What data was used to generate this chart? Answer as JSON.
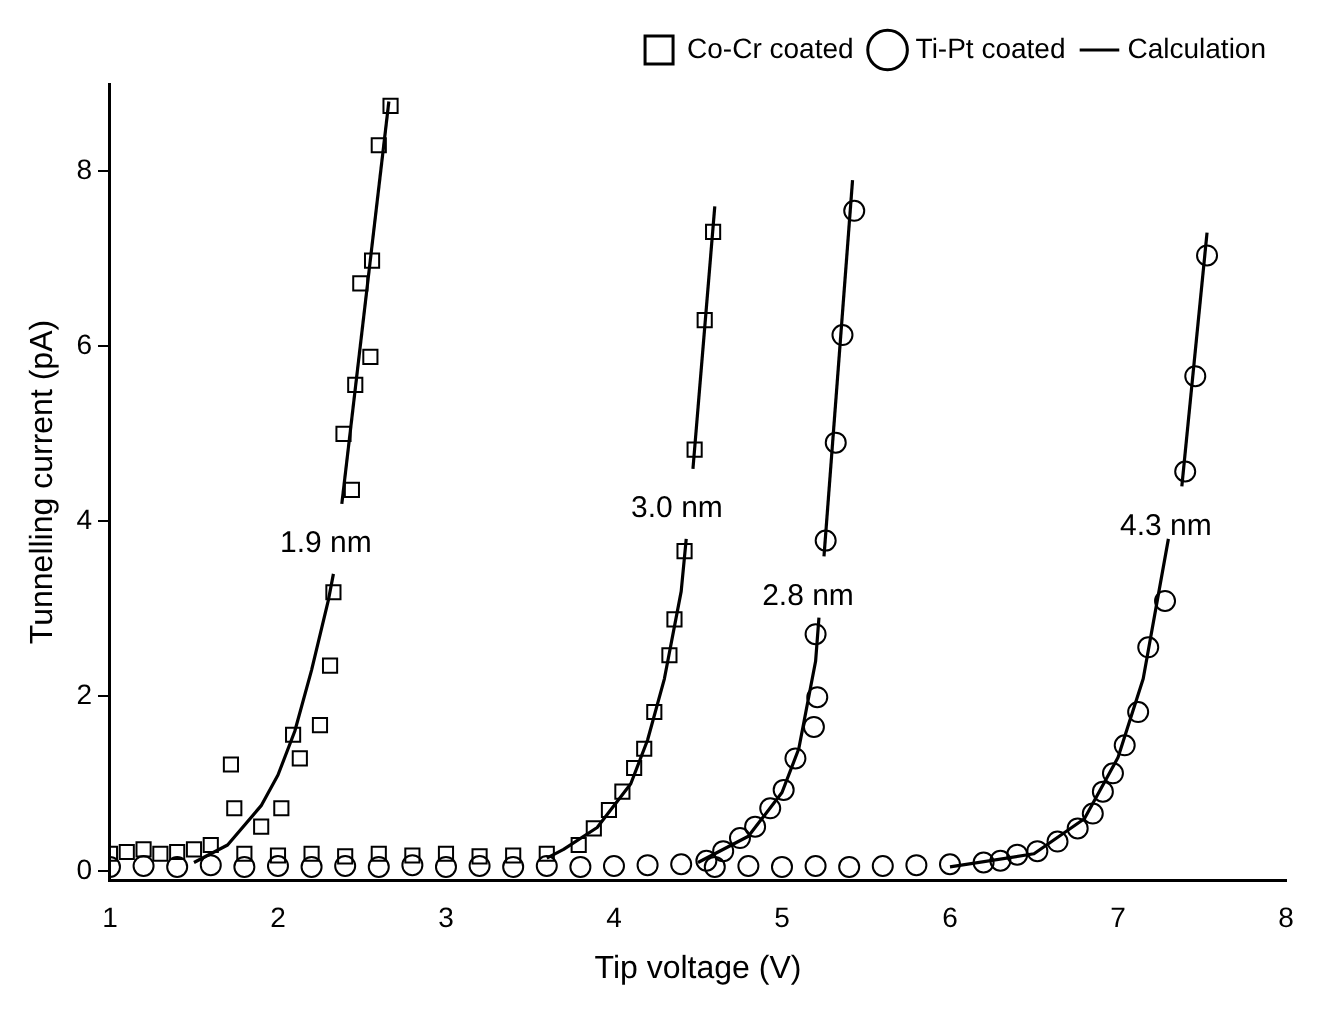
{
  "chart_data": {
    "type": "scatter",
    "xlabel": "Tip voltage (V)",
    "ylabel": "Tunnelling current (pA)",
    "xlim": [
      1,
      8
    ],
    "ylim": [
      -0.1,
      9
    ],
    "xticks": [
      1,
      2,
      3,
      4,
      5,
      6,
      7,
      8
    ],
    "yticks": [
      0,
      2,
      4,
      6,
      8
    ],
    "grid": false,
    "legend": "top right",
    "series": [
      {
        "name": "Co-Cr coated",
        "marker": "square",
        "color": "#000000",
        "x": [
          1.0,
          1.1,
          1.2,
          1.3,
          1.4,
          1.5,
          1.6,
          1.72,
          1.74,
          1.9,
          2.02,
          2.09,
          2.13,
          2.25,
          2.31,
          2.33,
          2.39,
          2.44,
          2.46,
          2.49,
          2.55,
          2.56,
          2.6,
          2.67,
          1.8,
          2.0,
          2.2,
          2.4,
          2.6,
          2.8,
          3.0,
          3.2,
          3.4,
          3.6,
          3.79,
          3.88,
          3.97,
          4.05,
          4.12,
          4.18,
          4.24,
          4.33,
          4.36,
          4.42,
          4.48,
          4.54,
          4.59
        ],
        "values": [
          0.2,
          0.22,
          0.25,
          0.2,
          0.22,
          0.25,
          0.3,
          1.22,
          0.72,
          0.51,
          0.72,
          1.56,
          1.29,
          1.67,
          2.35,
          3.19,
          5.0,
          4.36,
          5.56,
          6.72,
          5.88,
          6.98,
          8.3,
          8.75,
          0.2,
          0.18,
          0.2,
          0.17,
          0.2,
          0.18,
          0.2,
          0.17,
          0.18,
          0.2,
          0.3,
          0.49,
          0.7,
          0.91,
          1.18,
          1.4,
          1.82,
          2.47,
          2.88,
          3.66,
          4.82,
          6.3,
          7.31
        ]
      },
      {
        "name": "Ti-Pt coated",
        "marker": "circle",
        "color": "#000000",
        "x": [
          1.0,
          1.2,
          1.4,
          1.6,
          1.8,
          2.0,
          2.2,
          2.4,
          2.6,
          2.8,
          3.0,
          3.2,
          3.4,
          3.6,
          3.8,
          4.0,
          4.2,
          4.4,
          4.55,
          4.65,
          4.75,
          4.84,
          4.93,
          5.01,
          5.08,
          5.19,
          5.21,
          5.2,
          5.26,
          5.32,
          5.36,
          5.43,
          4.6,
          4.8,
          5.0,
          5.2,
          5.4,
          5.6,
          5.8,
          6.0,
          6.2,
          6.3,
          6.4,
          6.52,
          6.64,
          6.76,
          6.85,
          6.91,
          6.97,
          7.04,
          7.12,
          7.18,
          7.28,
          7.4,
          7.46,
          7.53
        ],
        "values": [
          0.05,
          0.06,
          0.05,
          0.07,
          0.05,
          0.06,
          0.05,
          0.06,
          0.05,
          0.07,
          0.05,
          0.06,
          0.05,
          0.06,
          0.05,
          0.06,
          0.07,
          0.08,
          0.12,
          0.23,
          0.38,
          0.51,
          0.72,
          0.93,
          1.29,
          1.65,
          1.99,
          2.71,
          3.78,
          4.9,
          6.13,
          7.55,
          0.05,
          0.06,
          0.05,
          0.06,
          0.05,
          0.06,
          0.07,
          0.08,
          0.1,
          0.12,
          0.19,
          0.23,
          0.34,
          0.49,
          0.66,
          0.91,
          1.12,
          1.44,
          1.82,
          2.56,
          3.09,
          4.57,
          5.66,
          7.04
        ]
      },
      {
        "name": "Calculation",
        "type": "line",
        "marker": "none",
        "color": "#000000",
        "x": [
          1.5,
          1.7,
          1.9,
          2.0,
          2.1,
          2.2,
          2.3,
          2.33
        ],
        "values": [
          0.1,
          0.3,
          0.75,
          1.1,
          1.6,
          2.3,
          3.1,
          3.4
        ]
      },
      {
        "type": "line",
        "marker": "none",
        "color": "#000000",
        "x": [
          2.38,
          2.66
        ],
        "values": [
          4.2,
          8.8
        ]
      },
      {
        "type": "line",
        "marker": "none",
        "color": "#000000",
        "x": [
          3.6,
          3.7,
          3.9,
          4.1,
          4.2,
          4.3,
          4.4,
          4.43
        ],
        "values": [
          0.15,
          0.25,
          0.5,
          1.0,
          1.5,
          2.2,
          3.2,
          3.8
        ]
      },
      {
        "type": "line",
        "marker": "none",
        "color": "#000000",
        "x": [
          4.47,
          4.6
        ],
        "values": [
          4.6,
          7.6
        ]
      },
      {
        "type": "line",
        "marker": "none",
        "color": "#000000",
        "x": [
          4.5,
          4.8,
          5.0,
          5.1,
          5.2,
          5.22
        ],
        "values": [
          0.1,
          0.4,
          0.9,
          1.4,
          2.4,
          2.9
        ]
      },
      {
        "type": "line",
        "marker": "none",
        "color": "#000000",
        "x": [
          5.25,
          5.42
        ],
        "values": [
          3.6,
          7.9
        ]
      },
      {
        "type": "line",
        "marker": "none",
        "color": "#000000",
        "x": [
          6.0,
          6.5,
          6.8,
          7.0,
          7.15,
          7.3
        ],
        "values": [
          0.05,
          0.2,
          0.6,
          1.3,
          2.2,
          3.8
        ]
      },
      {
        "type": "line",
        "marker": "none",
        "color": "#000000",
        "x": [
          7.38,
          7.53
        ],
        "values": [
          4.4,
          7.3
        ]
      }
    ],
    "annotations": [
      {
        "text": "1.9 nm",
        "x": 2.38,
        "y": 4.2
      },
      {
        "text": "3.0 nm",
        "x": 4.47,
        "y": 4.6
      },
      {
        "text": "2.8 nm",
        "x": 5.25,
        "y": 3.6
      },
      {
        "text": "4.3 nm",
        "x": 7.38,
        "y": 4.4
      }
    ]
  }
}
